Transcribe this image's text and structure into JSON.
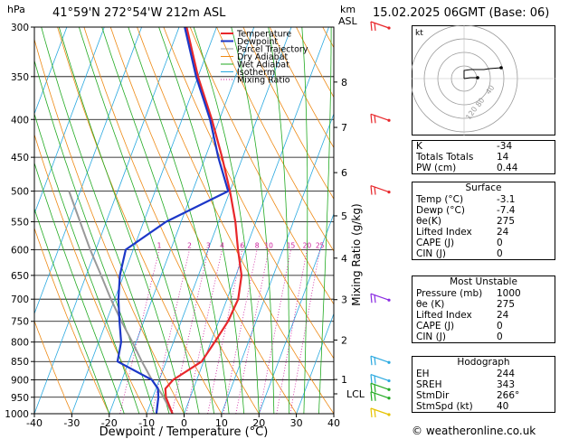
{
  "header": {
    "location": "41°59'N  272°54'W  212m  ASL",
    "datetime": "15.02.2025  06GMT  (Base: 06)",
    "hpa_label": "hPa",
    "km_label": "km",
    "asl_label": "ASL",
    "kt_label": "kt"
  },
  "chart_data": {
    "type": "line",
    "xlabel": "Dewpoint / Temperature (°C)",
    "ylabel_right": "Mixing Ratio (g/kg)",
    "xlim": [
      -40,
      40
    ],
    "ylim_hpa": [
      1000,
      300
    ],
    "x_ticks": [
      -40,
      -30,
      -20,
      -10,
      0,
      10,
      20,
      30,
      40
    ],
    "pressure_levels": [
      300,
      350,
      400,
      450,
      500,
      550,
      600,
      650,
      700,
      750,
      800,
      850,
      900,
      950,
      1000
    ],
    "km_ticks": [
      {
        "label": "8",
        "p": 356
      },
      {
        "label": "7",
        "p": 410
      },
      {
        "label": "6",
        "p": 472
      },
      {
        "label": "5",
        "p": 540
      },
      {
        "label": "4",
        "p": 616
      },
      {
        "label": "3",
        "p": 701
      },
      {
        "label": "2",
        "p": 795
      },
      {
        "label": "1",
        "p": 899
      }
    ],
    "lcl": {
      "label": "LCL",
      "p": 940
    },
    "mixing_ratio_labels": [
      "1",
      "2",
      "3",
      "4",
      "6",
      "8",
      "10",
      "15",
      "20",
      "25"
    ],
    "mixing_ratio_values": [
      1,
      2,
      3,
      4,
      6,
      8,
      10,
      15,
      20,
      25
    ],
    "legend": [
      "Temperature",
      "Dewpoint",
      "Parcel Trajectory",
      "Dry Adiabat",
      "Wet Adiabat",
      "Isotherm",
      "Mixing Ratio"
    ],
    "colors": {
      "temperature": "#e8272b",
      "dewpoint": "#1c37c8",
      "parcel": "#999999",
      "dry_adiabat": "#ee8a15",
      "wet_adiabat": "#22aa22",
      "isotherm": "#2aa9e0",
      "mixing_ratio": "#cc1a9a"
    },
    "series": [
      {
        "name": "Temperature",
        "points": [
          [
            1000,
            -3.1
          ],
          [
            950,
            -6.5
          ],
          [
            925,
            -7.5
          ],
          [
            900,
            -6.3
          ],
          [
            850,
            -0.5
          ],
          [
            800,
            1.0
          ],
          [
            750,
            2.5
          ],
          [
            700,
            3.0
          ],
          [
            650,
            1.5
          ],
          [
            600,
            -2.0
          ],
          [
            550,
            -5.5
          ],
          [
            500,
            -10.0
          ],
          [
            450,
            -15.5
          ],
          [
            400,
            -22.0
          ],
          [
            350,
            -30.0
          ],
          [
            300,
            -38.0
          ]
        ]
      },
      {
        "name": "Dewpoint",
        "points": [
          [
            1000,
            -7.4
          ],
          [
            950,
            -8.5
          ],
          [
            925,
            -9.5
          ],
          [
            900,
            -12.0
          ],
          [
            850,
            -23.0
          ],
          [
            800,
            -24.0
          ],
          [
            750,
            -26.5
          ],
          [
            700,
            -29.0
          ],
          [
            650,
            -31.0
          ],
          [
            600,
            -32.0
          ],
          [
            550,
            -24.0
          ],
          [
            500,
            -10.5
          ],
          [
            450,
            -16.5
          ],
          [
            400,
            -22.5
          ],
          [
            350,
            -30.5
          ],
          [
            300,
            -38.5
          ]
        ]
      },
      {
        "name": "Parcel Trajectory",
        "points": [
          [
            1000,
            -3.1
          ],
          [
            940,
            -8.0
          ],
          [
            900,
            -12.0
          ],
          [
            850,
            -16.5
          ],
          [
            800,
            -21.0
          ],
          [
            750,
            -26.0
          ],
          [
            700,
            -31.0
          ],
          [
            650,
            -36.0
          ],
          [
            600,
            -41.5
          ],
          [
            550,
            -47.0
          ],
          [
            500,
            -53.0
          ]
        ]
      }
    ]
  },
  "hodograph": {
    "ring_labels": [
      "40",
      "80",
      "120"
    ]
  },
  "indices": {
    "k_label": "K",
    "k_value": "-34",
    "tt_label": "Totals Totals",
    "tt_value": "14",
    "pw_label": "PW (cm)",
    "pw_value": "0.44"
  },
  "surface": {
    "title": "Surface",
    "temp_label": "Temp (°C)",
    "temp_value": "-3.1",
    "dewp_label": "Dewp (°C)",
    "dewp_value": "-7.4",
    "thetae_label": "θe(K)",
    "thetae_value": "275",
    "li_label": "Lifted Index",
    "li_value": "24",
    "cape_label": "CAPE (J)",
    "cape_value": "0",
    "cin_label": "CIN (J)",
    "cin_value": "0"
  },
  "most_unstable": {
    "title": "Most Unstable",
    "pressure_label": "Pressure (mb)",
    "pressure_value": "1000",
    "thetae_label": "θe (K)",
    "thetae_value": "275",
    "li_label": "Lifted Index",
    "li_value": "24",
    "cape_label": "CAPE (J)",
    "cape_value": "0",
    "cin_label": "CIN (J)",
    "cin_value": "0"
  },
  "hodograph_table": {
    "title": "Hodograph",
    "eh_label": "EH",
    "eh_value": "244",
    "sreh_label": "SREH",
    "sreh_value": "343",
    "stmdir_label": "StmDir",
    "stmdir_value": "266°",
    "stmspd_label": "StmSpd (kt)",
    "stmspd_value": "40"
  },
  "footer": {
    "copyright": "© weatheronline.co.uk"
  }
}
